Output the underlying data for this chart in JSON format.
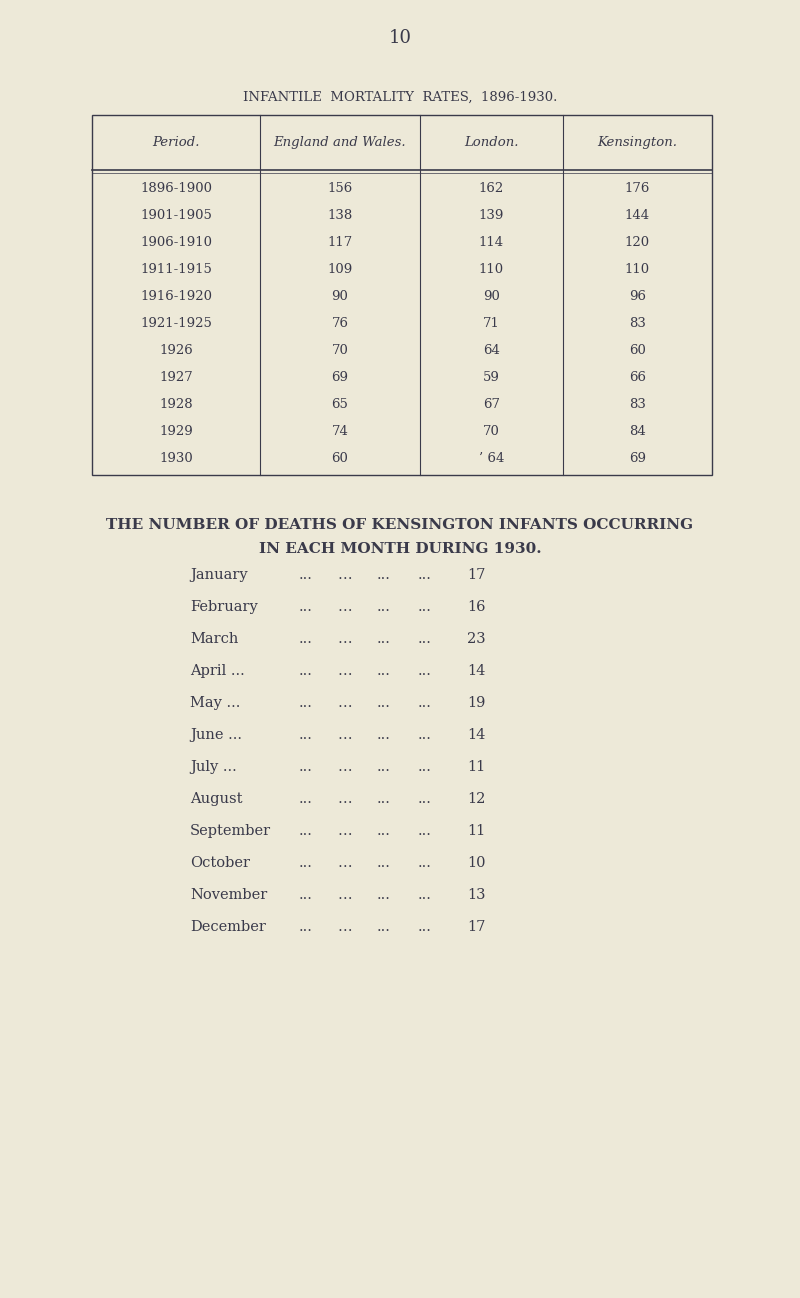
{
  "page_number": "10",
  "background_color": "#ede9d8",
  "text_color": "#3a3a4a",
  "table_title": "INFANTILE  MORTALITY  RATES,  1896-1930.",
  "table_headers": [
    "Period.",
    "England and Wales.",
    "London.",
    "Kensington."
  ],
  "table_rows": [
    [
      "1896-1900",
      "156",
      "162",
      "176"
    ],
    [
      "1901-1905",
      "138",
      "139",
      "144"
    ],
    [
      "1906-1910",
      "117",
      "114",
      "120"
    ],
    [
      "1911-1915",
      "109",
      "110",
      "110"
    ],
    [
      "1916-1920",
      "90",
      "90",
      "96"
    ],
    [
      "1921-1925",
      "76",
      "71",
      "83"
    ],
    [
      "1926",
      "70",
      "64",
      "60"
    ],
    [
      "1927",
      "69",
      "59",
      "66"
    ],
    [
      "1928",
      "65",
      "67",
      "83"
    ],
    [
      "1929",
      "74",
      "70",
      "84"
    ],
    [
      "1930",
      "60",
      "’ 64",
      "69"
    ]
  ],
  "section2_title_line1": "THE NUMBER OF DEATHS OF KENSINGTON INFANTS OCCURRING",
  "section2_title_line2": "IN EACH MONTH DURING 1930.",
  "monthly_data": [
    [
      "January",
      "17"
    ],
    [
      "February",
      "16"
    ],
    [
      "March",
      "23"
    ],
    [
      "April ...",
      "14"
    ],
    [
      "May ...",
      "19"
    ],
    [
      "June ...",
      "14"
    ],
    [
      "July ...",
      "11"
    ],
    [
      "August",
      "12"
    ],
    [
      "September",
      "11"
    ],
    [
      "October",
      "10"
    ],
    [
      "November",
      "13"
    ],
    [
      "December",
      "17"
    ]
  ]
}
